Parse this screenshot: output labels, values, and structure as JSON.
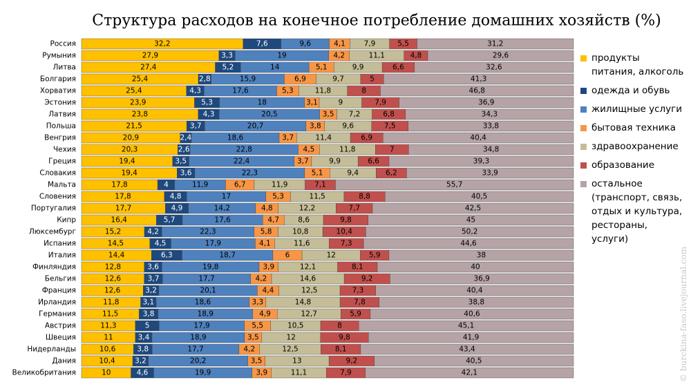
{
  "chart_data": {
    "type": "stacked-bar-horizontal-normalized",
    "title": "Структура расходов на конечное потребление домашних хозяйств (%)",
    "watermark": "© burckina-faso.livejournal.com",
    "categories": [
      "Россия",
      "Румыния",
      "Литва",
      "Болгария",
      "Хорватия",
      "Эстония",
      "Латвия",
      "Польша",
      "Венгрия",
      "Чехия",
      "Греция",
      "Словакия",
      "Мальта",
      "Словения",
      "Португалия",
      "Кипр",
      "Люксембург",
      "Испания",
      "Италия",
      "Финляндия",
      "Бельгия",
      "Франция",
      "Ирландия",
      "Германия",
      "Австрия",
      "Швеция",
      "Нидерланды",
      "Дания",
      "Великобритания"
    ],
    "series": [
      {
        "name": "продукты питания, алкоголь",
        "color": "#ffc000",
        "text_color": "#000000",
        "values": [
          32.2,
          27.9,
          27.4,
          25.4,
          25.4,
          23.9,
          23.8,
          21.5,
          20.9,
          20.3,
          19.4,
          19.4,
          17.8,
          17.8,
          17.7,
          16.4,
          15.2,
          14.5,
          14.4,
          12.8,
          12.6,
          12.6,
          11.8,
          11.5,
          11.3,
          11,
          10.6,
          10.4,
          10
        ],
        "value_labels": [
          "32,2",
          "27,9",
          "27,4",
          "25,4",
          "25,4",
          "23,9",
          "23,8",
          "21,5",
          "20,9",
          "20,3",
          "19,4",
          "19,4",
          "17,8",
          "17,8",
          "17,7",
          "16,4",
          "15,2",
          "14,5",
          "14,4",
          "12,8",
          "12,6",
          "12,6",
          "11,8",
          "11,5",
          "11,3",
          "11",
          "10,6",
          "10,4",
          "10"
        ]
      },
      {
        "name": "одежда и обувь",
        "color": "#1f497d",
        "text_color": "#ffffff",
        "values": [
          7.6,
          3.3,
          5.2,
          2.8,
          4.3,
          5.3,
          4.3,
          3.7,
          2.4,
          2.6,
          3.5,
          3.6,
          4,
          4.8,
          4.9,
          5.7,
          4.2,
          4.5,
          6.3,
          3.6,
          3.7,
          3.2,
          3.1,
          3.8,
          5,
          3.4,
          3.8,
          3.2,
          4.6
        ],
        "value_labels": [
          "7,6",
          "3,3",
          "5,2",
          "2,8",
          "4,3",
          "5,3",
          "4,3",
          "3,7",
          "2,4",
          "2,6",
          "3,5",
          "3,6",
          "4",
          "4,8",
          "4,9",
          "5,7",
          "4,2",
          "4,5",
          "6,3",
          "3,6",
          "3,7",
          "3,2",
          "3,1",
          "3,8",
          "5",
          "3,4",
          "3,8",
          "3,2",
          "4,6"
        ]
      },
      {
        "name": "жилищные услуги",
        "color": "#4f81bd",
        "text_color": "#000000",
        "values": [
          9.6,
          19,
          14,
          15.9,
          17.6,
          18,
          20.5,
          20.7,
          18.6,
          22.8,
          22.4,
          22.3,
          11.9,
          17,
          14.2,
          17.6,
          22.3,
          17.9,
          18.7,
          19.8,
          17.7,
          20.1,
          18.6,
          18.9,
          17.9,
          18.9,
          17.7,
          20.2,
          19.9
        ],
        "value_labels": [
          "9,6",
          "19",
          "14",
          "15,9",
          "17,6",
          "18",
          "20,5",
          "20,7",
          "18,6",
          "22,8",
          "22,4",
          "22,3",
          "11,9",
          "17",
          "14,2",
          "17,6",
          "22,3",
          "17,9",
          "18,7",
          "19,8",
          "17,7",
          "20,1",
          "18,6",
          "18,9",
          "17,9",
          "18,9",
          "17,7",
          "20,2",
          "19,9"
        ]
      },
      {
        "name": "бытовая техника",
        "color": "#f79646",
        "text_color": "#000000",
        "values": [
          4.1,
          4.2,
          5.1,
          6.9,
          5.3,
          3.1,
          3.5,
          3.8,
          3.7,
          4.5,
          3.7,
          5.1,
          6.7,
          5.3,
          4.8,
          4.7,
          5.8,
          4.1,
          6,
          3.9,
          4.2,
          4.4,
          3.3,
          4.9,
          5.5,
          3.5,
          4.2,
          3.5,
          3.9
        ],
        "value_labels": [
          "4,1",
          "4,2",
          "5,1",
          "6,9",
          "5,3",
          "3,1",
          "3,5",
          "3,8",
          "3,7",
          "4,5",
          "3,7",
          "5,1",
          "6,7",
          "5,3",
          "4,8",
          "4,7",
          "5,8",
          "4,1",
          "6",
          "3,9",
          "4,2",
          "4,4",
          "3,3",
          "4,9",
          "5,5",
          "3,5",
          "4,2",
          "3,5",
          "3,9"
        ]
      },
      {
        "name": "здравоохранение",
        "color": "#c4bd97",
        "text_color": "#000000",
        "values": [
          7.9,
          11.1,
          9.9,
          9.7,
          11.8,
          9,
          7.2,
          9.6,
          11.4,
          11.8,
          9.9,
          9.4,
          11.9,
          11.5,
          12.2,
          8.6,
          10.8,
          11.6,
          12,
          12.1,
          14.6,
          12.5,
          14.8,
          12.7,
          10.5,
          12,
          12.5,
          13,
          11.1
        ],
        "value_labels": [
          "7,9",
          "11,1",
          "9,9",
          "9,7",
          "11,8",
          "9",
          "7,2",
          "9,6",
          "11,4",
          "11,8",
          "9,9",
          "9,4",
          "11,9",
          "11,5",
          "12,2",
          "8,6",
          "10,8",
          "11,6",
          "12",
          "12,1",
          "14,6",
          "12,5",
          "14,8",
          "12,7",
          "10,5",
          "12",
          "12,5",
          "13",
          "11,1"
        ]
      },
      {
        "name": "образование",
        "color": "#c0504d",
        "text_color": "#000000",
        "values": [
          5.5,
          4.8,
          6.6,
          5,
          8,
          7.9,
          6.8,
          7.5,
          6.9,
          7,
          6.6,
          6.2,
          7.1,
          8.8,
          7.7,
          9.8,
          10.4,
          7.3,
          5.9,
          8.1,
          9.2,
          7.3,
          7.8,
          5.9,
          8,
          9.8,
          8.1,
          9.2,
          7.9
        ],
        "value_labels": [
          "5,5",
          "4,8",
          "6,6",
          "5",
          "8",
          "7,9",
          "6,8",
          "7,5",
          "6,9",
          "7",
          "6,6",
          "6,2",
          "7,1",
          "8,8",
          "7,7",
          "9,8",
          "10,4",
          "7,3",
          "5,9",
          "8,1",
          "9,2",
          "7,3",
          "7,8",
          "5,9",
          "8",
          "9,8",
          "8,1",
          "9,2",
          "7,9"
        ]
      },
      {
        "name": "остальное (транспорт, связь, отдых и культура, рестораны, услуги)",
        "color": "#b5a3a6",
        "text_color": "#000000",
        "values": [
          31.2,
          29.6,
          32.6,
          41.3,
          46.8,
          36.9,
          34.3,
          33.8,
          40.4,
          34.8,
          39.3,
          33.9,
          55.7,
          40.5,
          42.5,
          45,
          50.2,
          44.6,
          38,
          40,
          36.9,
          40.4,
          38.8,
          40.6,
          45.1,
          41.9,
          43.4,
          40.5,
          42.1
        ],
        "value_labels": [
          "31,2",
          "29,6",
          "32,6",
          "41,3",
          "46,8",
          "36,9",
          "34,3",
          "33,8",
          "40,4",
          "34,8",
          "39,3",
          "33,9",
          "55,7",
          "40,5",
          "42,5",
          "45",
          "50,2",
          "44,6",
          "38",
          "40",
          "36,9",
          "40,4",
          "38,8",
          "40,6",
          "45,1",
          "41,9",
          "43,4",
          "40,5",
          "42,1"
        ]
      }
    ]
  }
}
